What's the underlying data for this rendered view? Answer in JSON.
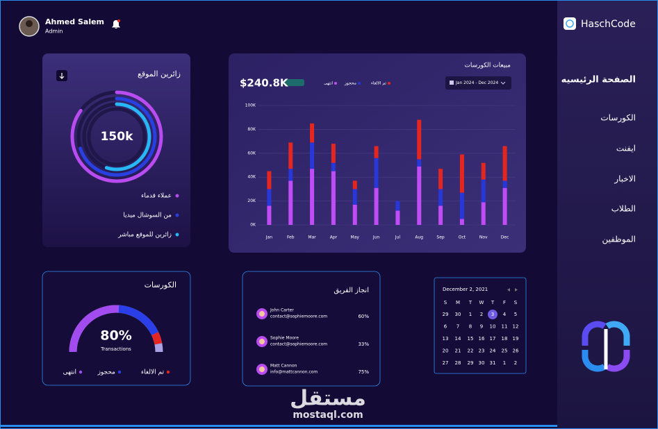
{
  "user": {
    "name": "Ahmed Salem",
    "role": "Admin"
  },
  "brand": "HaschCode",
  "nav": [
    "الصفحة الرئيسيه",
    "الكورسات",
    "ايفنت",
    "الاخبار",
    "الطلاب",
    "الموظفين"
  ],
  "visitors": {
    "title": "زائرين الموقع",
    "total": "150k",
    "rings": [
      {
        "name": "عملاء قدماء",
        "color": "#b84cf0",
        "value": 85
      },
      {
        "name": "من السوشال ميديا",
        "color": "#2a3fe0",
        "value": 70
      },
      {
        "name": "زائرين للموقع مباشر",
        "color": "#29b6f6",
        "value": 55
      }
    ]
  },
  "sales": {
    "type": "bar",
    "stacked": true,
    "title": "مبيعات الكورسات",
    "total": "$240.8K",
    "range": "Jan 2024 - Dec 2024",
    "categories": [
      "Jan",
      "Feb",
      "Mar",
      "Apr",
      "May",
      "Jun",
      "Jul",
      "Aug",
      "Sep",
      "Oct",
      "Nov",
      "Dec"
    ],
    "series": [
      {
        "name": "انتهى",
        "color": "#c04cf5",
        "values": [
          16000,
          37000,
          47000,
          45000,
          17000,
          31000,
          12000,
          49000,
          16000,
          5000,
          19000,
          31000
        ]
      },
      {
        "name": "محجوز",
        "color": "#2737d8",
        "values": [
          14000,
          10000,
          22000,
          7000,
          13000,
          25000,
          8000,
          6000,
          14000,
          22000,
          19000,
          6000
        ]
      },
      {
        "name": "تم الالغاء",
        "color": "#e3261f",
        "values": [
          15000,
          22000,
          16000,
          16000,
          7000,
          10000,
          0,
          33000,
          17000,
          32000,
          14000,
          29000
        ]
      }
    ],
    "ylim": [
      0,
      100000
    ],
    "yticks": [
      {
        "value": 0,
        "label": "0K"
      },
      {
        "value": 20000,
        "label": "20K"
      },
      {
        "value": 40000,
        "label": "40K"
      },
      {
        "value": 60000,
        "label": "60K"
      },
      {
        "value": 80000,
        "label": "80K"
      },
      {
        "value": 100000,
        "label": "100K"
      }
    ],
    "grid": true
  },
  "courses": {
    "title": "الكورسات",
    "center": "80%",
    "subtitle": "Transactions",
    "segments": [
      {
        "name": "انتهى",
        "color": "#a24cf0",
        "value": 52
      },
      {
        "name": "محجوز",
        "color": "#2a3fe8",
        "value": 34
      },
      {
        "name": "تم الالغاء",
        "color": "#e3261f",
        "value": 8
      }
    ]
  },
  "team": {
    "title": "انجاز الفريق",
    "members": [
      {
        "name": "John Carter",
        "email": "contact@sophiemoore.com",
        "progress": "60%"
      },
      {
        "name": "Sophie Moore",
        "email": "contact@sophiemoore.com",
        "progress": "33%"
      },
      {
        "name": "Matt Cannon",
        "email": "info@mattcannon.com",
        "progress": "75%"
      }
    ]
  },
  "calendar": {
    "title": "December 2, 2021",
    "weekdays": [
      "S",
      "M",
      "T",
      "W",
      "T",
      "F",
      "S"
    ],
    "selected_day": 3,
    "weeks": [
      [
        29,
        30,
        1,
        2,
        3,
        4,
        5
      ],
      [
        6,
        7,
        8,
        9,
        10,
        11,
        12
      ],
      [
        13,
        14,
        15,
        16,
        17,
        18,
        19
      ],
      [
        20,
        21,
        22,
        23,
        24,
        25,
        26
      ],
      [
        27,
        28,
        29,
        30,
        31,
        1,
        2
      ]
    ]
  },
  "watermark": {
    "logo": "مستقل",
    "site": "mostaql.com"
  }
}
